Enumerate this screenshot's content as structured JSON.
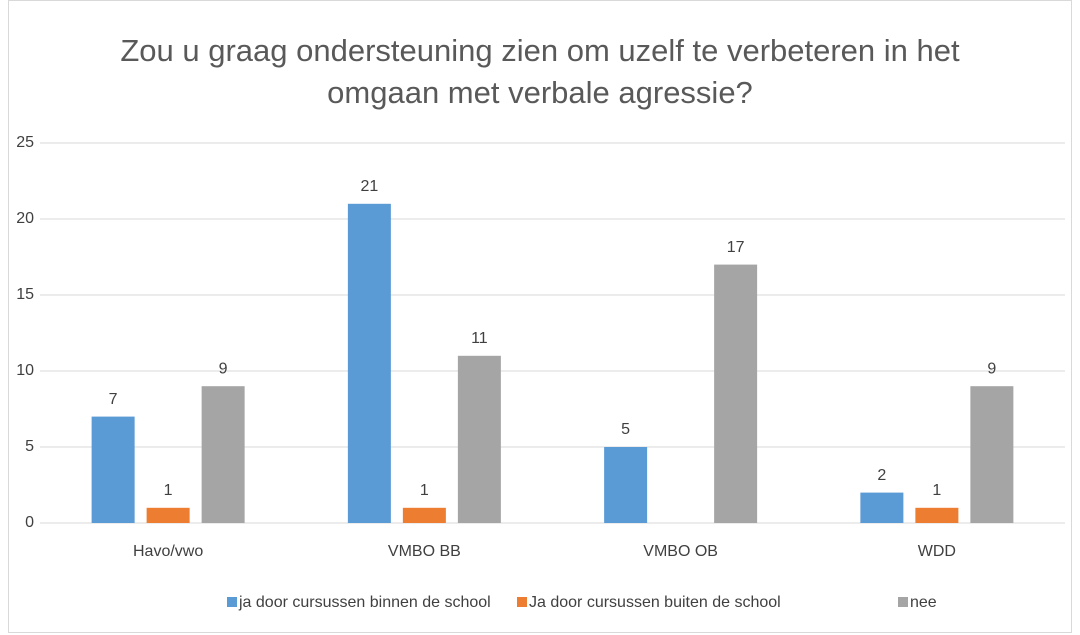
{
  "chart_data": {
    "type": "bar",
    "title": "Zou u graag ondersteuning zien om uzelf te verbeteren in het omgaan met verbale agressie?",
    "categories": [
      "Havo/vwo",
      "VMBO BB",
      "VMBO OB",
      "WDD"
    ],
    "series": [
      {
        "name": "ja door cursussen binnen de school",
        "color": "#5b9bd5",
        "values": [
          7,
          21,
          5,
          2
        ]
      },
      {
        "name": "Ja door cursussen buiten de school",
        "color": "#ed7d31",
        "values": [
          1,
          1,
          null,
          1
        ]
      },
      {
        "name": "nee",
        "color": "#a5a5a5",
        "values": [
          9,
          11,
          17,
          9
        ]
      }
    ],
    "ylim": [
      0,
      25
    ],
    "yticks": [
      0,
      5,
      10,
      15,
      20,
      25
    ],
    "grid": true,
    "legend": "bottom"
  }
}
